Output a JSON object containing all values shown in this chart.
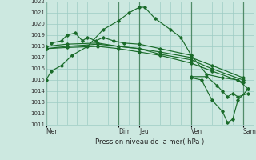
{
  "title": "Pression niveau de la mer( hPa )",
  "bg_color": "#cce8e0",
  "grid_color": "#9eccc4",
  "line_color": "#1a6b2a",
  "ylim": [
    1011,
    1022
  ],
  "yticks": [
    1011,
    1012,
    1013,
    1014,
    1015,
    1016,
    1017,
    1018,
    1019,
    1020,
    1021,
    1022
  ],
  "xlim": [
    0,
    20
  ],
  "vline_positions": [
    0,
    7,
    9,
    14,
    19
  ],
  "vline_labels": [
    "Mer",
    "Dim",
    "Jeu",
    "Ven",
    "Sam"
  ],
  "series": [
    {
      "x": [
        0.0,
        0.5,
        1.5,
        2.5,
        4.0,
        5.5,
        7.0,
        8.0,
        9.0,
        9.5,
        10.5,
        12.0,
        13.0,
        14.0,
        15.5,
        17.0,
        18.5,
        19.5
      ],
      "y": [
        1015.0,
        1015.8,
        1016.3,
        1017.2,
        1018.0,
        1019.5,
        1020.3,
        1021.0,
        1021.5,
        1021.5,
        1020.5,
        1019.5,
        1018.8,
        1017.2,
        1015.5,
        1015.2,
        1015.0,
        1014.2
      ]
    },
    {
      "x": [
        0.0,
        2.0,
        5.0,
        7.0,
        9.0,
        11.0,
        14.0,
        16.0,
        19.0
      ],
      "y": [
        1017.8,
        1018.0,
        1018.2,
        1018.0,
        1017.8,
        1017.5,
        1017.0,
        1016.3,
        1015.2
      ]
    },
    {
      "x": [
        0.0,
        2.0,
        5.0,
        7.0,
        9.0,
        11.0,
        14.0,
        16.0,
        19.0
      ],
      "y": [
        1017.8,
        1017.9,
        1018.0,
        1017.8,
        1017.5,
        1017.2,
        1016.5,
        1015.8,
        1014.8
      ]
    },
    {
      "x": [
        0.0,
        2.0,
        5.0,
        7.0,
        9.0,
        11.0,
        14.0,
        16.0,
        19.0
      ],
      "y": [
        1018.0,
        1018.2,
        1018.3,
        1018.0,
        1017.8,
        1017.3,
        1016.8,
        1016.0,
        1015.0
      ]
    },
    {
      "x": [
        0.5,
        1.5,
        2.0,
        2.8,
        3.5,
        4.0,
        4.8,
        5.5,
        6.5,
        7.5,
        9.0,
        11.0,
        14.0
      ],
      "y": [
        1018.3,
        1018.5,
        1019.0,
        1019.2,
        1018.5,
        1018.8,
        1018.5,
        1018.8,
        1018.5,
        1018.3,
        1018.2,
        1017.8,
        1017.2
      ]
    },
    {
      "x": [
        14.0,
        15.0,
        16.0,
        17.0,
        17.5,
        18.0,
        18.5,
        19.5
      ],
      "y": [
        1015.2,
        1015.0,
        1013.2,
        1012.2,
        1011.2,
        1011.5,
        1013.2,
        1014.2
      ]
    },
    {
      "x": [
        14.0,
        15.5,
        16.5,
        17.0,
        17.5,
        18.0,
        18.5,
        19.5
      ],
      "y": [
        1015.3,
        1015.3,
        1014.5,
        1014.0,
        1013.5,
        1013.8,
        1013.5,
        1013.8
      ]
    }
  ]
}
